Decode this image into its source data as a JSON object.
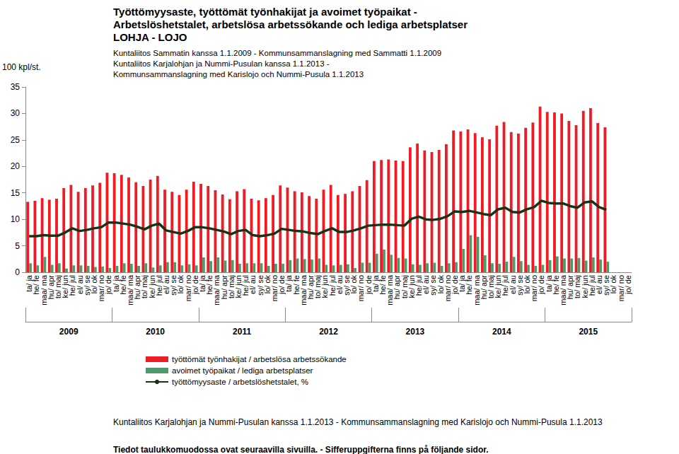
{
  "chart_data": {
    "type": "bar",
    "title": "Työttömyysaste, työttömät työnhakijat ja avoimet työpaikat -\nArbetslöshetstalet, arbetslösa arbetssökande och lediga arbetsplatser\nLOHJA - LOJO",
    "subtitle": "Kuntaliitos Sammatin kanssa 1.1.2009 - Kommunsammanslagning med Sammatti 1.1.2009\nKuntaliitos Karjalohjan ja Nummi-Pusulan kanssa 1.1.2013 -\nKommunsammanslagning med Karislojo och Nummi-Pusula 1.1.2013",
    "y_label": "100 kpl/st.",
    "notes": [
      "Kuntaliitos Karjalohjan ja Nummi-Pusulan kanssa 1.1.2013 - Kommunsammanslagning med Karislojo och Nummi-Pusula 1.1.2013",
      "Tiedot taulukkomuodossa ovat seuraavilla sivuilla. - Sifferuppgifterna finns på följande sidor."
    ],
    "years": [
      "2009",
      "2010",
      "2011",
      "2012",
      "2013",
      "2014",
      "2015"
    ],
    "categories": [
      "ta/ ja",
      "he/ fe",
      "maa/ ma",
      "hu/ apr",
      "to/ maj",
      "ke/ jun",
      "he/ jul",
      "el/ au",
      "sy/ se",
      "lo/ ok",
      "mar/ no",
      "jo/ de",
      "ta/ ja",
      "he/ fe",
      "maa/ ma",
      "hu/ apr",
      "to/ maj",
      "ke/ jun",
      "he/ jul",
      "el/ au",
      "sy/ se",
      "lo/ ok",
      "mar/ no",
      "jo/ de",
      "ta/ ja",
      "he/ fe",
      "maa/ ma",
      "hu/ apr",
      "to/ maj",
      "ke/ jun",
      "he/ jul",
      "el/ au",
      "sy/ se",
      "lo/ ok",
      "mar/ no",
      "jo/ de",
      "ta/ ja",
      "he/ fe",
      "maa/ ma",
      "hu/ apr",
      "to/ maj",
      "ke/ jun",
      "he/ jul",
      "el/ au",
      "sy/ se",
      "lo/ ok",
      "mar/ no",
      "jo/ de",
      "ta/ ja",
      "he/ fe",
      "maa/ ma",
      "hu/ apr",
      "to/ maj",
      "ke/ jun",
      "he/ jul",
      "el/ au",
      "sy/ se",
      "lo/ ok",
      "mar/ no",
      "jo/ de",
      "ta/ ja",
      "he/ fe",
      "maa/ ma",
      "hu/ apr",
      "to/ maj",
      "ke/ jun",
      "he/ jul",
      "el/ au",
      "sy/ se",
      "lo/ ok",
      "mar/ no",
      "jo/ de",
      "ta/ ja",
      "he/ fe",
      "maa/ ma",
      "hu/ apr",
      "to/ maj",
      "ke/ jun",
      "he/ jul",
      "el/ au",
      "sy/ se",
      "lo/ ok",
      "mar/ no",
      "jo/ de"
    ],
    "series": [
      {
        "name": "työttömät työnhakijat / arbetslösa arbetssökande",
        "type": "bar",
        "color": "#ee1c25",
        "values": [
          13.3,
          13.5,
          14.0,
          13.7,
          13.9,
          15.9,
          16.5,
          15.2,
          15.9,
          16.4,
          16.9,
          18.8,
          18.7,
          18.4,
          17.9,
          17.0,
          16.3,
          17.5,
          18.2,
          15.6,
          15.2,
          14.6,
          15.6,
          17.1,
          16.7,
          16.3,
          15.5,
          14.7,
          13.8,
          15.3,
          15.7,
          13.9,
          13.6,
          14.0,
          14.6,
          16.4,
          16.0,
          15.3,
          15.1,
          14.4,
          13.9,
          15.6,
          16.5,
          14.6,
          14.8,
          15.3,
          16.3,
          17.4,
          21.0,
          21.2,
          21.3,
          21.1,
          21.0,
          23.6,
          24.3,
          23.0,
          22.7,
          23.1,
          24.2,
          26.8,
          26.6,
          27.0,
          26.3,
          25.5,
          25.1,
          27.7,
          28.4,
          26.5,
          26.2,
          27.3,
          28.3,
          31.3,
          30.3,
          30.2,
          30.0,
          28.6,
          27.8,
          30.5,
          31.0,
          28.2,
          27.4,
          null,
          null,
          null
        ]
      },
      {
        "name": "avoimet työpaikat / lediga arbetsplatser",
        "type": "bar",
        "color": "#4e9a6a",
        "values": [
          1.7,
          1.3,
          2.9,
          1.4,
          1.7,
          0.7,
          1.3,
          1.3,
          1.2,
          1.0,
          1.1,
          0.8,
          1.2,
          1.7,
          1.6,
          1.2,
          1.7,
          0.9,
          1.3,
          1.9,
          1.9,
          1.3,
          1.5,
          1.3,
          2.8,
          2.1,
          2.8,
          2.2,
          2.3,
          1.6,
          1.7,
          1.7,
          1.7,
          1.2,
          1.6,
          1.6,
          2.3,
          2.6,
          2.5,
          2.4,
          2.6,
          1.4,
          1.3,
          1.4,
          1.5,
          0.8,
          1.8,
          1.8,
          3.5,
          4.3,
          3.3,
          2.7,
          2.6,
          1.5,
          1.4,
          1.7,
          1.8,
          1.2,
          1.7,
          1.9,
          4.4,
          7.0,
          6.7,
          3.2,
          1.7,
          1.6,
          2.0,
          2.9,
          2.1,
          1.4,
          1.2,
          1.4,
          2.3,
          3.0,
          2.6,
          2.6,
          2.7,
          2.2,
          2.8,
          2.4,
          2.0,
          null,
          null,
          null
        ]
      },
      {
        "name": "työttömyysaste / arbetslöshetstalet, %",
        "type": "line",
        "color": "#1a3318",
        "marker": "none",
        "line_style": "solid",
        "values": [
          6.8,
          6.8,
          7.0,
          6.9,
          6.9,
          7.5,
          8.3,
          7.8,
          8.0,
          8.3,
          8.5,
          9.4,
          9.4,
          9.2,
          9.0,
          8.6,
          8.1,
          8.8,
          9.2,
          7.9,
          7.6,
          7.3,
          7.8,
          8.5,
          8.5,
          8.3,
          8.0,
          7.7,
          7.2,
          7.8,
          8.0,
          7.0,
          6.8,
          7.0,
          7.3,
          8.2,
          8.0,
          7.8,
          7.7,
          7.4,
          7.2,
          7.8,
          8.3,
          7.6,
          7.6,
          7.9,
          8.3,
          8.8,
          8.9,
          9.0,
          9.0,
          8.9,
          8.8,
          10.1,
          10.5,
          10.0,
          9.9,
          10.1,
          10.6,
          11.5,
          11.4,
          11.6,
          11.3,
          11.0,
          10.8,
          11.9,
          12.2,
          11.4,
          11.3,
          11.9,
          12.3,
          13.5,
          13.1,
          13.0,
          13.0,
          12.5,
          12.2,
          13.2,
          13.4,
          12.3,
          11.8,
          null,
          null,
          null
        ]
      }
    ],
    "ylim": [
      0,
      35
    ],
    "yticks": [
      0,
      5,
      10,
      15,
      20,
      25,
      30,
      35
    ],
    "grid": false,
    "legend": "bottom"
  }
}
